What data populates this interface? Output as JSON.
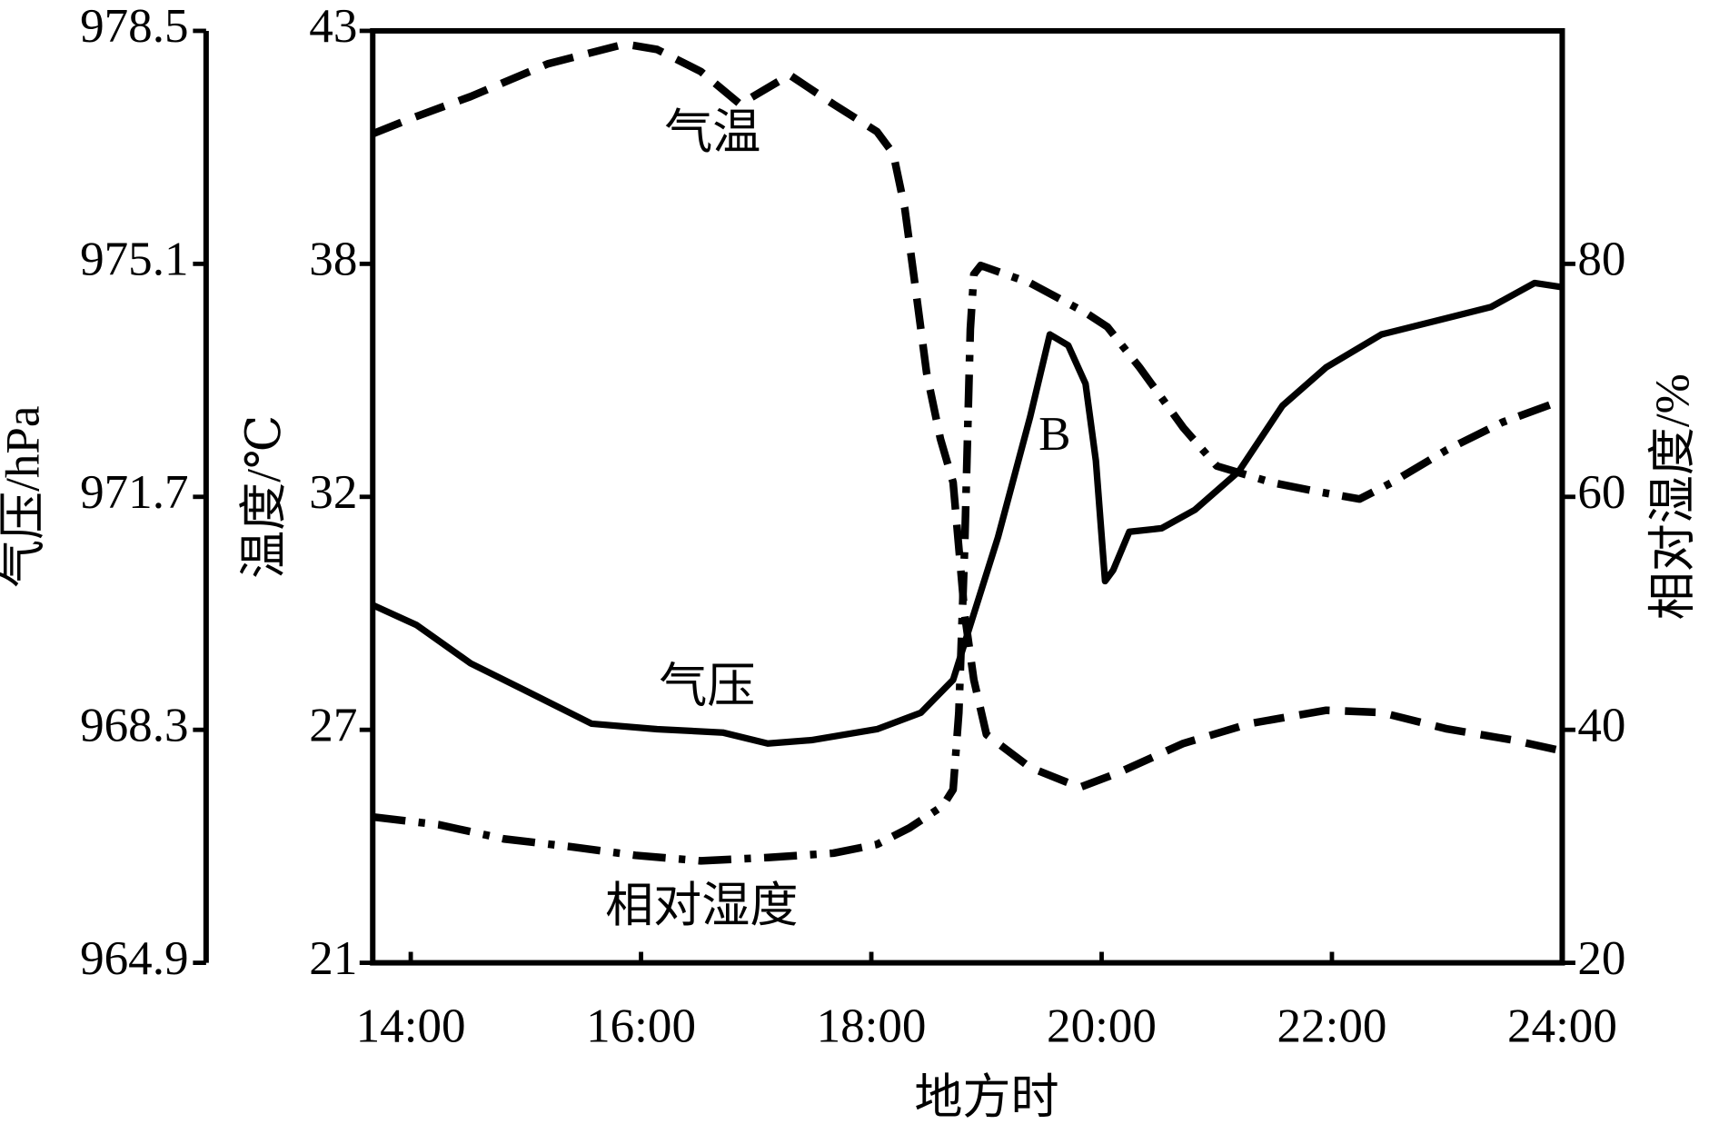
{
  "chart_data": {
    "type": "line",
    "x_label": "地方时",
    "y_label": "温度/℃",
    "y2_label": "相对湿度/%",
    "y3_label": "气压/hPa",
    "xlim": [
      13.67,
      24
    ],
    "xticks": [
      {
        "value": 14,
        "label": "14:00"
      },
      {
        "value": 16,
        "label": "16:00"
      },
      {
        "value": 18,
        "label": "18:00"
      },
      {
        "value": 20,
        "label": "20:00"
      },
      {
        "value": 22,
        "label": "22:00"
      },
      {
        "value": 24,
        "label": "24:00"
      }
    ],
    "ylim": [
      21,
      43
    ],
    "yticks": [
      21,
      {
        "value": 26.5,
        "label": "27"
      },
      32,
      {
        "value": 37.5,
        "label": "38"
      },
      43
    ],
    "y2lim": [
      20,
      100
    ],
    "y2ticks": [
      20,
      40,
      60,
      80
    ],
    "y3lim": [
      964.9,
      978.5
    ],
    "y3ticks": [
      964.9,
      968.3,
      971.7,
      975.1,
      978.5
    ],
    "annotations": [
      "B"
    ],
    "series": [
      {
        "name": "气温",
        "color": "#000000",
        "style": "dashed",
        "axis": "y",
        "x": [
          13.67,
          14,
          14.52,
          15.19,
          15.86,
          16.14,
          16.52,
          16.86,
          17.29,
          17.67,
          18.05,
          18.19,
          18.29,
          18.38,
          18.48,
          18.6,
          18.71,
          18.81,
          18.89,
          19.0,
          19.38,
          19.81,
          20.14,
          20.71,
          21.29,
          21.95,
          22.43,
          23.0,
          23.57,
          24
        ],
        "values": [
          40.57,
          40.93,
          41.45,
          42.22,
          42.69,
          42.56,
          42.04,
          41.27,
          41.96,
          41.27,
          40.62,
          40.1,
          38.81,
          37.0,
          34.93,
          33.37,
          32.34,
          29.23,
          27.68,
          26.39,
          25.61,
          25.14,
          25.48,
          26.18,
          26.65,
          26.96,
          26.91,
          26.52,
          26.26,
          26.0
        ]
      },
      {
        "name": "气压",
        "color": "#000000",
        "style": "solid",
        "axis": "y3",
        "x": [
          13.67,
          14.05,
          14.52,
          15.0,
          15.57,
          16.14,
          16.71,
          17.1,
          17.48,
          18.05,
          18.43,
          18.71,
          18.86,
          19.1,
          19.38,
          19.55,
          19.71,
          19.86,
          19.95,
          20.03,
          20.1,
          20.24,
          20.52,
          20.81,
          21.19,
          21.57,
          21.95,
          22.43,
          23.0,
          23.38,
          23.76,
          24
        ],
        "values": [
          970.12,
          969.83,
          969.27,
          968.87,
          968.39,
          968.31,
          968.26,
          968.1,
          968.15,
          968.31,
          968.55,
          969.03,
          969.83,
          971.11,
          972.87,
          974.07,
          973.91,
          973.35,
          972.23,
          970.47,
          970.63,
          971.19,
          971.24,
          971.51,
          972.07,
          973.03,
          973.59,
          974.07,
          974.31,
          974.47,
          974.82,
          974.76
        ]
      },
      {
        "name": "相对湿度",
        "color": "#000000",
        "style": "dashdot",
        "axis": "y2",
        "x": [
          13.67,
          14.24,
          14.81,
          15.38,
          15.95,
          16.52,
          17.1,
          17.67,
          18.05,
          18.33,
          18.62,
          18.71,
          18.76,
          18.81,
          18.86,
          18.89,
          18.95,
          19.38,
          19.86,
          20.05,
          20.33,
          20.71,
          21.0,
          21.48,
          21.86,
          22.24,
          22.52,
          23.0,
          23.48,
          24
        ],
        "values": [
          32.52,
          31.86,
          30.64,
          29.98,
          29.22,
          28.75,
          29.04,
          29.41,
          30.16,
          31.58,
          33.46,
          34.87,
          41.46,
          55.58,
          74.4,
          79.11,
          79.86,
          78.35,
          75.81,
          74.59,
          71.11,
          65.93,
          62.64,
          61.22,
          60.47,
          59.81,
          61.22,
          64.05,
          66.4,
          68.28
        ]
      }
    ]
  }
}
